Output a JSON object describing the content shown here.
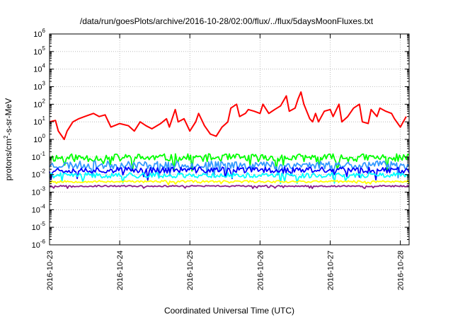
{
  "chart_data": {
    "type": "line",
    "title": "/data/run/goesPlots/archive/2016-10-28/02:00/flux/../flux/5daysMoonFluxes.txt",
    "xlabel": "Coordinated Universal Time (UTC)",
    "ylabel": "protons/cm2-s-sr-MeV",
    "ylabel_parts": {
      "prefix": "protons/cm",
      "sup": "2",
      "suffix": "-s-sr-MeV"
    },
    "x_tick_labels": [
      "2016-10-23",
      "2016-10-24",
      "2016-10-25",
      "2016-10-26",
      "2016-10-27",
      "2016-10-28"
    ],
    "y_tick_labels": [
      {
        "base": "10",
        "exp": "-6"
      },
      {
        "base": "10",
        "exp": "-5"
      },
      {
        "base": "10",
        "exp": "-4"
      },
      {
        "base": "10",
        "exp": "-3"
      },
      {
        "base": "10",
        "exp": "-2"
      },
      {
        "base": "10",
        "exp": "-1"
      },
      {
        "base": "10",
        "exp": "0"
      },
      {
        "base": "10",
        "exp": "1"
      },
      {
        "base": "10",
        "exp": "2"
      },
      {
        "base": "10",
        "exp": "3"
      },
      {
        "base": "10",
        "exp": "4"
      },
      {
        "base": "10",
        "exp": "5"
      },
      {
        "base": "10",
        "exp": "6"
      }
    ],
    "y_scale": "log",
    "xlim": [
      "2016-10-23",
      "2016-10-28 03:00"
    ],
    "ylim": [
      1e-06,
      1000000.0
    ],
    "grid": true,
    "series": [
      {
        "color": "#ff0000",
        "points": [
          [
            "2016-10-23 00:00",
            10
          ],
          [
            "2016-10-23 02:00",
            12
          ],
          [
            "2016-10-23 03:00",
            3
          ],
          [
            "2016-10-23 05:00",
            1
          ],
          [
            "2016-10-23 06:00",
            3
          ],
          [
            "2016-10-23 08:00",
            10
          ],
          [
            "2016-10-23 10:00",
            15
          ],
          [
            "2016-10-23 12:00",
            20
          ],
          [
            "2016-10-23 15:00",
            30
          ],
          [
            "2016-10-23 17:00",
            20
          ],
          [
            "2016-10-23 19:00",
            25
          ],
          [
            "2016-10-23 21:00",
            5
          ],
          [
            "2016-10-24 00:00",
            8
          ],
          [
            "2016-10-24 03:00",
            6
          ],
          [
            "2016-10-24 05:00",
            3
          ],
          [
            "2016-10-24 07:00",
            10
          ],
          [
            "2016-10-24 09:00",
            6
          ],
          [
            "2016-10-24 11:00",
            4
          ],
          [
            "2016-10-24 14:00",
            8
          ],
          [
            "2016-10-24 16:00",
            15
          ],
          [
            "2016-10-24 17:00",
            5
          ],
          [
            "2016-10-24 19:00",
            50
          ],
          [
            "2016-10-24 20:00",
            10
          ],
          [
            "2016-10-24 22:00",
            15
          ],
          [
            "2016-10-25 00:00",
            3
          ],
          [
            "2016-10-25 02:00",
            10
          ],
          [
            "2016-10-25 03:00",
            30
          ],
          [
            "2016-10-25 05:00",
            6
          ],
          [
            "2016-10-25 07:00",
            2
          ],
          [
            "2016-10-25 09:00",
            1.5
          ],
          [
            "2016-10-25 11:00",
            5
          ],
          [
            "2016-10-25 13:00",
            10
          ],
          [
            "2016-10-25 14:00",
            60
          ],
          [
            "2016-10-25 16:00",
            100
          ],
          [
            "2016-10-25 17:00",
            20
          ],
          [
            "2016-10-25 19:00",
            30
          ],
          [
            "2016-10-25 20:00",
            50
          ],
          [
            "2016-10-25 22:00",
            40
          ],
          [
            "2016-10-26 00:00",
            30
          ],
          [
            "2016-10-26 01:00",
            100
          ],
          [
            "2016-10-26 03:00",
            30
          ],
          [
            "2016-10-26 05:00",
            50
          ],
          [
            "2016-10-26 07:00",
            80
          ],
          [
            "2016-10-26 09:00",
            300
          ],
          [
            "2016-10-26 10:00",
            40
          ],
          [
            "2016-10-26 12:00",
            60
          ],
          [
            "2016-10-26 13:00",
            200
          ],
          [
            "2016-10-26 14:00",
            500
          ],
          [
            "2016-10-26 15:00",
            100
          ],
          [
            "2016-10-26 17:00",
            15
          ],
          [
            "2016-10-26 18:00",
            10
          ],
          [
            "2016-10-26 19:00",
            30
          ],
          [
            "2016-10-26 20:00",
            10
          ],
          [
            "2016-10-26 22:00",
            40
          ],
          [
            "2016-10-27 00:00",
            50
          ],
          [
            "2016-10-27 01:00",
            20
          ],
          [
            "2016-10-27 03:00",
            100
          ],
          [
            "2016-10-27 04:00",
            10
          ],
          [
            "2016-10-27 06:00",
            20
          ],
          [
            "2016-10-27 08:00",
            60
          ],
          [
            "2016-10-27 10:00",
            100
          ],
          [
            "2016-10-27 11:00",
            10
          ],
          [
            "2016-10-27 13:00",
            8
          ],
          [
            "2016-10-27 14:00",
            50
          ],
          [
            "2016-10-27 16:00",
            20
          ],
          [
            "2016-10-27 17:00",
            60
          ],
          [
            "2016-10-27 19:00",
            40
          ],
          [
            "2016-10-27 21:00",
            30
          ],
          [
            "2016-10-27 22:00",
            15
          ],
          [
            "2016-10-28 00:00",
            5
          ],
          [
            "2016-10-28 01:00",
            10
          ],
          [
            "2016-10-28 02:00",
            20
          ]
        ]
      },
      {
        "color": "#00ff00",
        "band": {
          "level": 0.09,
          "spread": 0.45,
          "seed": 11
        }
      },
      {
        "color": "#3399ff",
        "band": {
          "level": 0.035,
          "spread": 0.45,
          "seed": 23
        }
      },
      {
        "color": "#0000ff",
        "band": {
          "level": 0.018,
          "spread": 0.35,
          "seed": 37
        }
      },
      {
        "color": "#00ffff",
        "band": {
          "level": 0.009,
          "spread": 0.3,
          "seed": 41
        }
      },
      {
        "color": "#ffff00",
        "band": {
          "level": 0.004,
          "spread": 0.12,
          "seed": 53
        }
      },
      {
        "color": "#8b1a8b",
        "band": {
          "level": 0.0022,
          "spread": 0.08,
          "seed": 67
        }
      }
    ]
  }
}
